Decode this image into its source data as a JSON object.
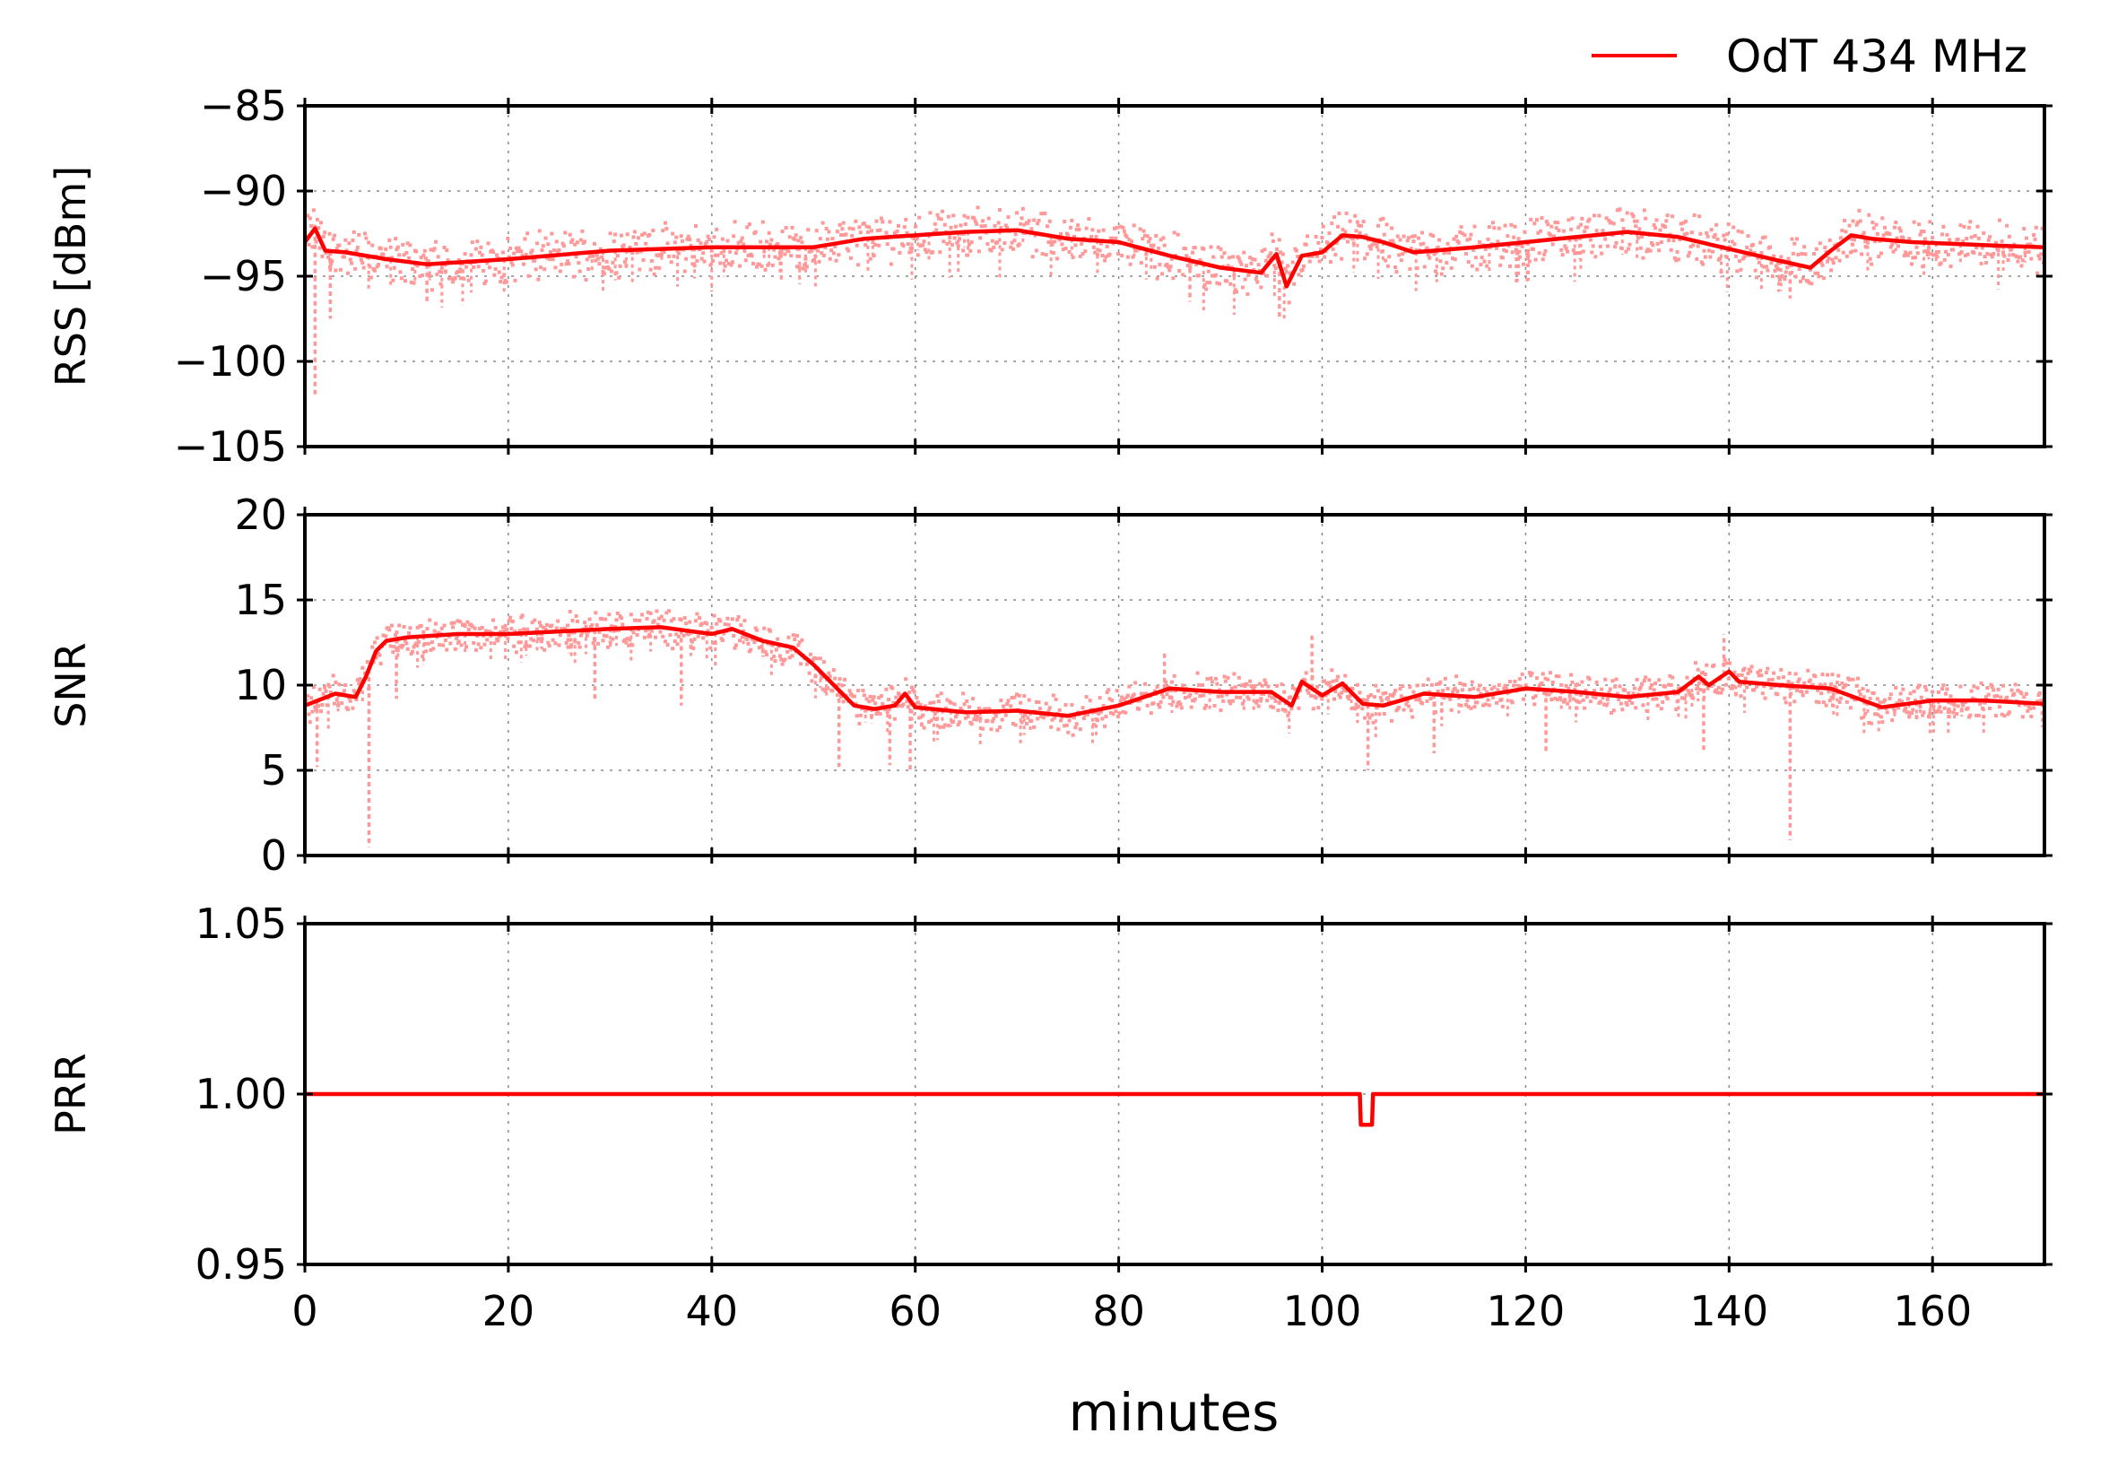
{
  "chart_data": {
    "type": "line",
    "legend": {
      "label": "OdT 434 MHz",
      "color": "#ff0000",
      "placement": "top-right"
    },
    "xlabel": "minutes",
    "xlim": [
      0,
      171
    ],
    "xticks": [
      0,
      20,
      40,
      60,
      80,
      100,
      120,
      140,
      160
    ],
    "xtick_labels": [
      "0",
      "20",
      "40",
      "60",
      "80",
      "100",
      "120",
      "140",
      "160"
    ],
    "grid": true,
    "raw_color": "#ff9999",
    "line_color": "#ff0000",
    "panels": [
      {
        "id": "rss",
        "ylabel": "RSS [dBm]",
        "ylim": [
          -105,
          -85
        ],
        "yticks": [
          -105,
          -100,
          -95,
          -90,
          -85
        ],
        "ytick_labels": [
          "−105",
          "−100",
          "−95",
          "−90",
          "−85"
        ],
        "smoothed": {
          "x": [
            0,
            1,
            2,
            4,
            8,
            12,
            20,
            30,
            40,
            50,
            55,
            60,
            65,
            70,
            75,
            80,
            85,
            90,
            94,
            95.5,
            96.5,
            98,
            100,
            102,
            104,
            106,
            109,
            115,
            120,
            125,
            130,
            135,
            140,
            145,
            148,
            150,
            152,
            154,
            158,
            162,
            166,
            171
          ],
          "y": [
            -93.0,
            -92.2,
            -93.5,
            -93.6,
            -94.0,
            -94.3,
            -94.0,
            -93.5,
            -93.3,
            -93.3,
            -92.8,
            -92.6,
            -92.4,
            -92.3,
            -92.8,
            -93.0,
            -93.8,
            -94.5,
            -94.8,
            -93.7,
            -95.6,
            -93.8,
            -93.6,
            -92.6,
            -92.7,
            -93.0,
            -93.6,
            -93.3,
            -93.0,
            -92.7,
            -92.4,
            -92.7,
            -93.4,
            -94.1,
            -94.5,
            -93.5,
            -92.6,
            -92.8,
            -93.0,
            -93.1,
            -93.2,
            -93.3
          ]
        },
        "raw_spread": 1.2,
        "raw_outliers": [
          {
            "x": 1.0,
            "y": -102.0
          },
          {
            "x": 2.5,
            "y": -97.5
          },
          {
            "x": 95.8,
            "y": -97.5
          },
          {
            "x": 12.0,
            "y": -96.5
          },
          {
            "x": 87.0,
            "y": -96.5
          },
          {
            "x": 146.0,
            "y": -96.3
          }
        ]
      },
      {
        "id": "snr",
        "ylabel": "SNR",
        "ylim": [
          0,
          20
        ],
        "yticks": [
          0,
          5,
          10,
          15,
          20
        ],
        "ytick_labels": [
          "0",
          "5",
          "10",
          "15",
          "20"
        ],
        "smoothed": {
          "x": [
            0,
            3,
            5,
            6,
            7,
            8,
            10,
            15,
            20,
            30,
            35,
            40,
            42,
            45,
            48,
            50,
            52,
            54,
            56,
            58,
            59,
            60,
            65,
            70,
            75,
            80,
            85,
            90,
            95,
            97,
            98,
            100,
            102,
            104,
            106,
            110,
            115,
            120,
            125,
            130,
            135,
            137,
            138,
            140,
            141,
            145,
            150,
            155,
            160,
            165,
            171
          ],
          "y": [
            8.8,
            9.5,
            9.3,
            10.5,
            12.0,
            12.6,
            12.8,
            13.0,
            13.0,
            13.3,
            13.4,
            13.0,
            13.3,
            12.6,
            12.2,
            11.2,
            10.0,
            8.8,
            8.6,
            8.8,
            9.5,
            8.7,
            8.4,
            8.5,
            8.2,
            8.8,
            9.8,
            9.6,
            9.6,
            8.8,
            10.2,
            9.4,
            10.1,
            8.9,
            8.8,
            9.5,
            9.3,
            9.8,
            9.6,
            9.3,
            9.6,
            10.5,
            10.0,
            10.8,
            10.2,
            10.0,
            9.8,
            8.7,
            9.1,
            9.1,
            8.9
          ]
        },
        "raw_spread": 0.9,
        "raw_outliers": [
          {
            "x": 6.3,
            "y": 0.5
          },
          {
            "x": 146.0,
            "y": 0.9
          },
          {
            "x": 1.2,
            "y": 5.2
          },
          {
            "x": 52.5,
            "y": 5.2
          },
          {
            "x": 57.5,
            "y": 5.3
          },
          {
            "x": 59.5,
            "y": 5.0
          },
          {
            "x": 104.5,
            "y": 5.0
          },
          {
            "x": 9.0,
            "y": 9.2
          },
          {
            "x": 28.5,
            "y": 9.0
          },
          {
            "x": 37.0,
            "y": 8.8
          },
          {
            "x": 111.0,
            "y": 6.0
          },
          {
            "x": 122.0,
            "y": 6.1
          },
          {
            "x": 137.5,
            "y": 6.2
          },
          {
            "x": 139.5,
            "y": 13.0
          },
          {
            "x": 99.0,
            "y": 13.0
          },
          {
            "x": 84.5,
            "y": 12.0
          }
        ]
      },
      {
        "id": "prr",
        "ylabel": "PRR",
        "ylim": [
          0.95,
          1.05
        ],
        "yticks": [
          0.95,
          1.0,
          1.05
        ],
        "ytick_labels": [
          "0.95",
          "1.00",
          "1.05"
        ],
        "smoothed": {
          "x": [
            0,
            103.7,
            103.8,
            104.9,
            105.0,
            171
          ],
          "y": [
            1.0,
            1.0,
            0.991,
            0.991,
            1.0,
            1.0
          ]
        },
        "raw_spread": 0,
        "raw_outliers": []
      }
    ]
  }
}
